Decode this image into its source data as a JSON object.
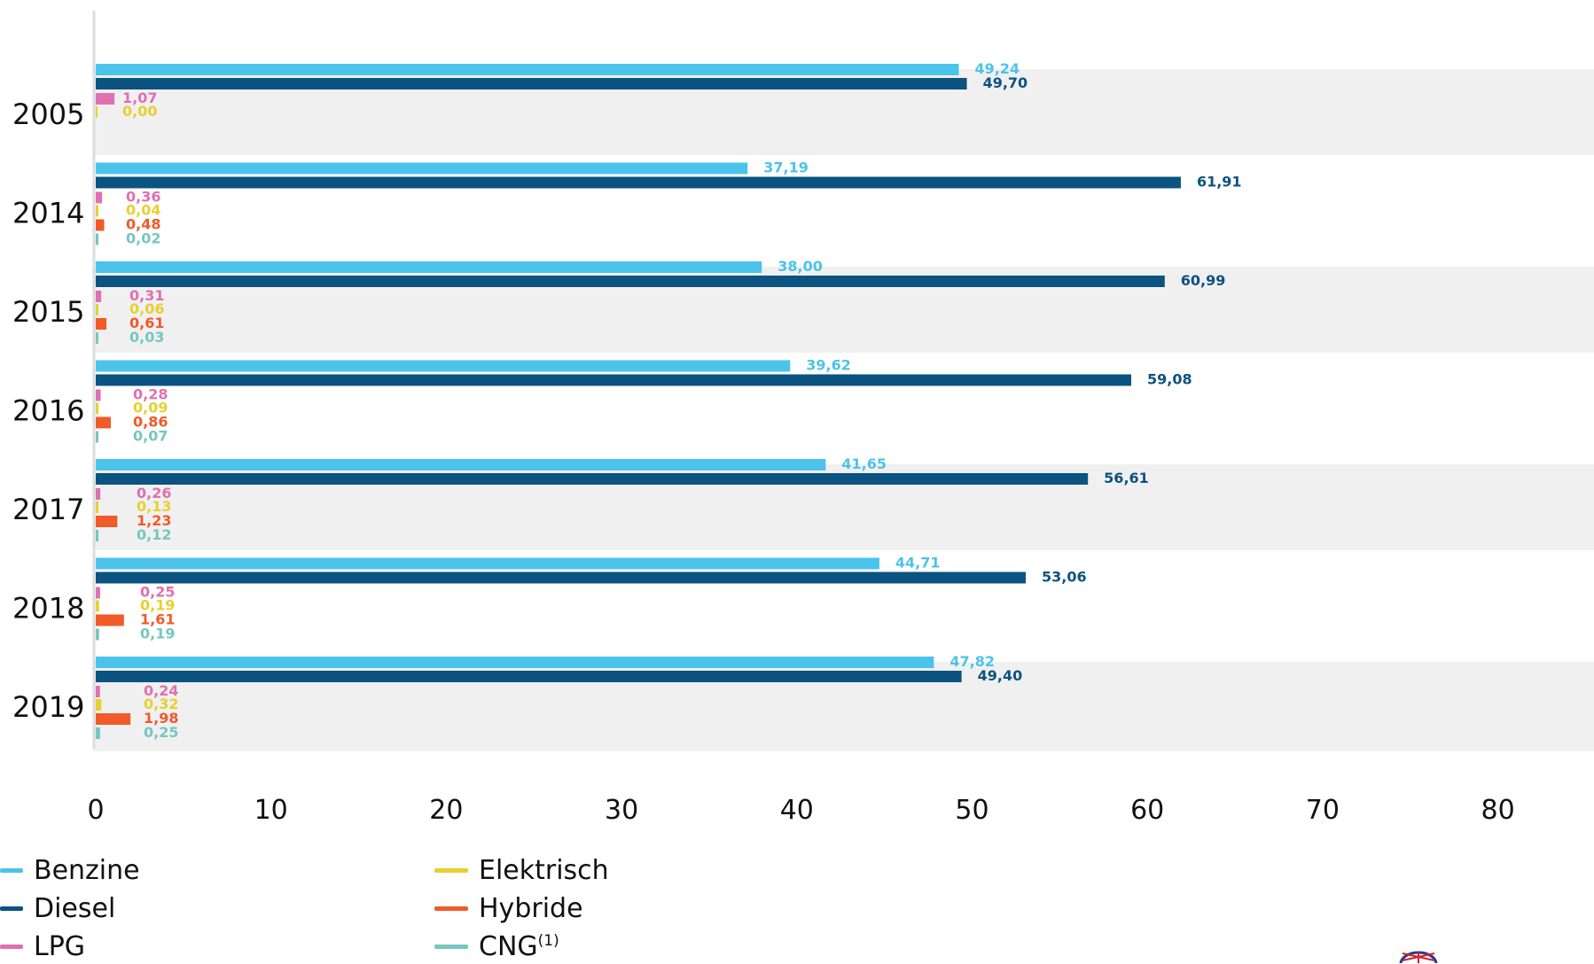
{
  "chart_data": {
    "type": "bar",
    "orientation": "horizontal",
    "categories": [
      "2005",
      "2014",
      "2015",
      "2016",
      "2017",
      "2018",
      "2019"
    ],
    "series": [
      {
        "name": "Benzine",
        "color": "#4cc3ea",
        "values": [
          49.24,
          37.19,
          38.0,
          39.62,
          41.65,
          44.71,
          47.82
        ],
        "labels": [
          "49,24",
          "37,19",
          "38,00",
          "39,62",
          "41,65",
          "44,71",
          "47,82"
        ]
      },
      {
        "name": "Diesel",
        "color": "#0b5380",
        "values": [
          49.7,
          61.91,
          60.99,
          59.08,
          56.61,
          53.06,
          49.4
        ],
        "labels": [
          "49,70",
          "61,91",
          "60,99",
          "59,08",
          "56,61",
          "53,06",
          "49,40"
        ]
      },
      {
        "name": "LPG",
        "color": "#e070b0",
        "values": [
          1.07,
          0.36,
          0.31,
          0.28,
          0.26,
          0.25,
          0.24
        ],
        "labels": [
          "1,07",
          "0,36",
          "0,31",
          "0,28",
          "0,26",
          "0,25",
          "0,24"
        ]
      },
      {
        "name": "Elektrisch",
        "color": "#e6d12e",
        "values": [
          0.0,
          0.04,
          0.06,
          0.09,
          0.13,
          0.19,
          0.32
        ],
        "labels": [
          "0,00",
          "0,04",
          "0,06",
          "0,09",
          "0,13",
          "0,19",
          "0,32"
        ]
      },
      {
        "name": "Hybride",
        "color": "#f15a29",
        "values": [
          null,
          0.48,
          0.61,
          0.86,
          1.23,
          1.61,
          1.98
        ],
        "labels": [
          null,
          "0,48",
          "0,61",
          "0,86",
          "1,23",
          "1,61",
          "1,98"
        ]
      },
      {
        "name": "CNG",
        "color": "#76c7c0",
        "values": [
          null,
          0.02,
          0.03,
          0.07,
          0.12,
          0.19,
          0.25
        ],
        "labels": [
          null,
          "0,02",
          "0,03",
          "0,07",
          "0,12",
          "0,19",
          "0,25"
        ]
      }
    ],
    "xlim": [
      0,
      85
    ],
    "xticks": [
      "0",
      "10",
      "20",
      "30",
      "40",
      "50",
      "60",
      "70",
      "80"
    ],
    "title": "",
    "xlabel": "",
    "ylabel": "",
    "grid": false,
    "legend_position": "bottom-left"
  },
  "legend": {
    "benzine": "Benzine",
    "diesel": "Diesel",
    "lpg": "LPG",
    "elektrisch": "Elektrisch",
    "hybride": "Hybride",
    "cng": "CNG",
    "cng_note": "(1)"
  }
}
